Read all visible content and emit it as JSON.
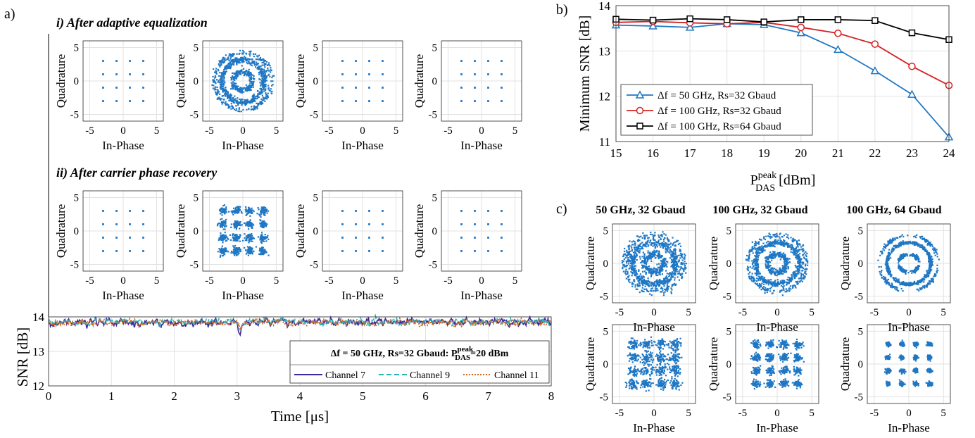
{
  "panel_a": {
    "label": "a)",
    "section_i_title": "i) After adaptive equalization",
    "section_ii_title": "ii) After carrier phase recovery",
    "const_xlabel": "In-Phase",
    "const_ylabel": "Quadrature",
    "const_ticks": [
      "-5",
      "0",
      "5"
    ]
  },
  "panel_b": {
    "label": "b)"
  },
  "panel_c": {
    "label": "c)",
    "titles": [
      "50 GHz, 32 Gbaud",
      "100 GHz, 32 Gbaud",
      "100 GHz, 64 Gbaud"
    ],
    "const_xlabel": "In-Phase",
    "const_ylabel": "Quadrature",
    "const_ticks": [
      "-5",
      "0",
      "5"
    ]
  },
  "chart_data": [
    {
      "id": "snr-time",
      "type": "line",
      "xlabel": "Time [μs]",
      "ylabel": "SNR [dB]",
      "xlim": [
        0,
        8
      ],
      "ylim": [
        12,
        14
      ],
      "xticks": [
        "0",
        "1",
        "2",
        "3",
        "4",
        "5",
        "6",
        "7",
        "8"
      ],
      "yticks": [
        "12",
        "13",
        "14"
      ],
      "grid": true,
      "legend_title_prefix": "Δf = 50 GHz, Rs=32 Gbaud: P",
      "legend_title_sup": "peak",
      "legend_title_sub": "DAS",
      "legend_title_suffix": "=20 dBm",
      "legend_position": "bottom-right",
      "series": [
        {
          "name": "Channel 7",
          "color": "#3a2a9e",
          "dash": "solid",
          "mean": 13.84,
          "noise": 0.07,
          "dip_at": 3.05,
          "dip_depth": 0.4
        },
        {
          "name": "Channel 9",
          "color": "#2ab5b5",
          "dash": "dashed",
          "mean": 13.86,
          "noise": 0.06,
          "dip_at": 3.05,
          "dip_depth": 0.2
        },
        {
          "name": "Channel 11",
          "color": "#d6651a",
          "dash": "dotted",
          "mean": 13.83,
          "noise": 0.06,
          "dip_at": 3.05,
          "dip_depth": 0.2
        }
      ]
    },
    {
      "id": "min-snr",
      "type": "line",
      "xlabel_main": "P",
      "xlabel_sup": "peak",
      "xlabel_sub": "DAS",
      "xlabel_unit": " [dBm]",
      "ylabel": "Minimum SNR [dB]",
      "x": [
        15,
        16,
        17,
        18,
        19,
        20,
        21,
        22,
        23,
        24
      ],
      "xlim": [
        15,
        24
      ],
      "ylim": [
        11,
        14
      ],
      "xticks": [
        "15",
        "16",
        "17",
        "18",
        "19",
        "20",
        "21",
        "22",
        "23",
        "24"
      ],
      "yticks": [
        "11",
        "12",
        "13",
        "14"
      ],
      "grid": true,
      "legend_position": "lower-left",
      "series": [
        {
          "name": "Δf = 50 GHz, Rs=32 Gbaud",
          "color": "#1f77c4",
          "marker": "triangle",
          "values": [
            13.57,
            13.55,
            13.52,
            13.6,
            13.58,
            13.4,
            13.03,
            12.56,
            12.04,
            11.1
          ]
        },
        {
          "name": "Δf = 100 GHz, Rs=32 Gbaud",
          "color": "#d62020",
          "marker": "circle",
          "values": [
            13.63,
            13.65,
            13.62,
            13.6,
            13.63,
            13.52,
            13.39,
            13.15,
            12.66,
            12.24
          ]
        },
        {
          "name": "Δf = 100 GHz, Rs=64 Gbaud",
          "color": "#000000",
          "marker": "square",
          "values": [
            13.7,
            13.68,
            13.71,
            13.69,
            13.64,
            13.69,
            13.69,
            13.67,
            13.4,
            13.25
          ]
        }
      ]
    },
    {
      "id": "constellations",
      "type": "scatter",
      "xlim": [
        -6,
        6
      ],
      "ylim": [
        -6,
        6
      ],
      "ideal_points": [
        -3,
        -1,
        1,
        3
      ],
      "color": "#1f77c4",
      "panel_a_row_i": [
        "clean",
        "ring",
        "clean",
        "clean"
      ],
      "panel_a_row_ii": [
        "clean",
        "fuzzy",
        "clean",
        "clean"
      ],
      "panel_c_row_1": [
        "ring-heavy",
        "ring-medium",
        "ring-light"
      ],
      "panel_c_row_2": [
        "fuzzy-heavy",
        "fuzzy-medium",
        "fuzzy-light"
      ]
    }
  ]
}
